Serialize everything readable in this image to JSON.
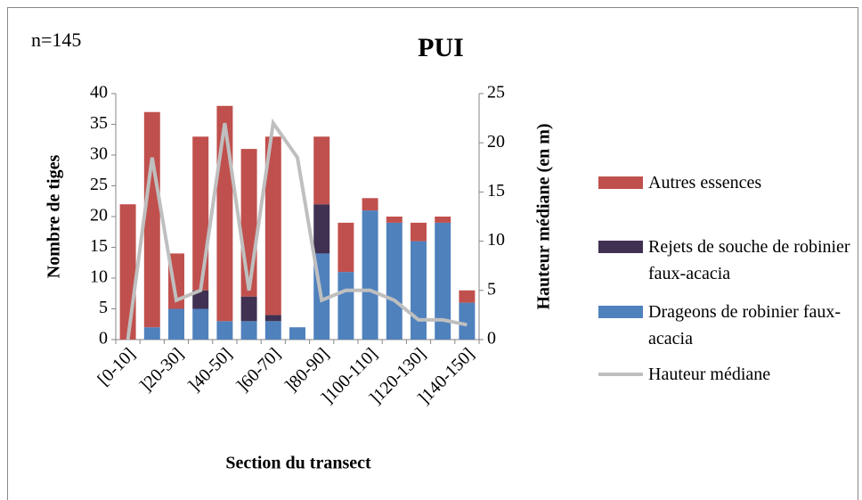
{
  "chart_data": {
    "type": "bar",
    "stacked": true,
    "title": "PUI",
    "annotation": "n=145",
    "x_label": "Section du transect",
    "y_label": "Nombre de tiges",
    "y2_label": "Hauteur médiane (en m)",
    "categories": [
      "[0-10]",
      null,
      "]20-30]",
      null,
      "]40-50]",
      null,
      "]60-70]",
      null,
      "]80-90]",
      null,
      "]100-110]",
      null,
      "]120-130]",
      null,
      "]140-150]"
    ],
    "series": [
      {
        "name": "Autres essences",
        "color": "#c0504d",
        "values": [
          22,
          35,
          9,
          25,
          35,
          24,
          29,
          0,
          11,
          8,
          2,
          1,
          3,
          1,
          2
        ]
      },
      {
        "name": "Rejets de souche de robinier faux-acacia",
        "color": "#403152",
        "values": [
          0,
          0,
          0,
          3,
          0,
          4,
          1,
          0,
          8,
          0,
          0,
          0,
          0,
          0,
          0
        ]
      },
      {
        "name": "Drageons de robinier faux-acacia",
        "color": "#4f81bd",
        "values": [
          0,
          2,
          5,
          5,
          3,
          3,
          3,
          2,
          14,
          11,
          21,
          19,
          16,
          19,
          6
        ]
      },
      {
        "name": "Hauteur médiane",
        "color": "#bfbfbf",
        "type": "line",
        "axis": "y2",
        "values": [
          0,
          18.5,
          4,
          5,
          22,
          5,
          22,
          18.5,
          4,
          5,
          5,
          4,
          2,
          2,
          1.5
        ]
      }
    ],
    "ylim": [
      0,
      40
    ],
    "yticks": [
      0,
      5,
      10,
      15,
      20,
      25,
      30,
      35,
      40
    ],
    "y2lim": [
      0,
      25
    ],
    "y2ticks": [
      0,
      5,
      10,
      15,
      20,
      25
    ],
    "grid": false,
    "legend": "right"
  }
}
